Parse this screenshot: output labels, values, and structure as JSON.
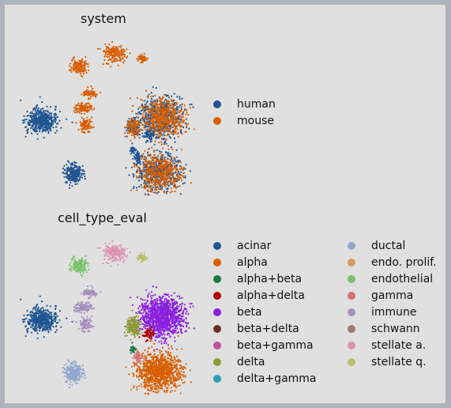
{
  "chart_data": [
    {
      "type": "scatter",
      "title": "system",
      "xlabel": "",
      "ylabel": "",
      "grid": false,
      "legend_position": "right",
      "series": [
        {
          "name": "human",
          "color": "#1f5591"
        },
        {
          "name": "mouse",
          "color": "#d95f02"
        }
      ]
    },
    {
      "type": "scatter",
      "title": "cell_type_eval",
      "xlabel": "",
      "ylabel": "",
      "grid": false,
      "legend_position": "right",
      "series": [
        {
          "name": "acinar",
          "color": "#1f5591"
        },
        {
          "name": "alpha",
          "color": "#d95f02"
        },
        {
          "name": "alpha+beta",
          "color": "#1b7a48"
        },
        {
          "name": "alpha+delta",
          "color": "#b00000"
        },
        {
          "name": "beta",
          "color": "#8a1fe0"
        },
        {
          "name": "beta+delta",
          "color": "#6b2f2a"
        },
        {
          "name": "beta+gamma",
          "color": "#c0509a"
        },
        {
          "name": "delta",
          "color": "#8f9a3a"
        },
        {
          "name": "delta+gamma",
          "color": "#2ba0b0"
        },
        {
          "name": "ductal",
          "color": "#8fa8cf"
        },
        {
          "name": "endo. prolif.",
          "color": "#d9985a"
        },
        {
          "name": "endothelial",
          "color": "#78c26a"
        },
        {
          "name": "gamma",
          "color": "#d47070"
        },
        {
          "name": "immune",
          "color": "#a58fbd"
        },
        {
          "name": "schwann",
          "color": "#a07a70"
        },
        {
          "name": "stellate a.",
          "color": "#de90b0"
        },
        {
          "name": "stellate q.",
          "color": "#bdbf6a"
        }
      ]
    }
  ]
}
